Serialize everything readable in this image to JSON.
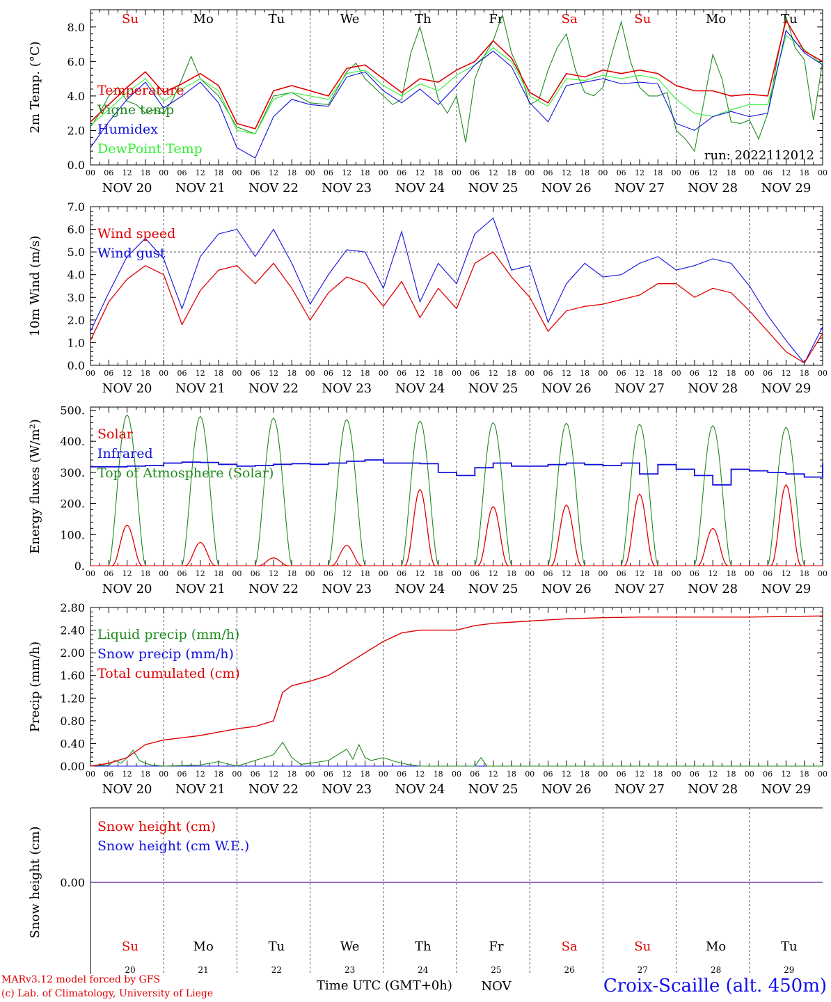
{
  "colors": {
    "red": "#e00000",
    "darkgreen": "#1f8a1f",
    "blue": "#1010dd",
    "lightgreen": "#33ee33",
    "purple": "#7a3fa8",
    "grid": "#555555"
  },
  "time_axis": {
    "hour_labels": [
      "00",
      "06",
      "12",
      "18"
    ],
    "date_labels": [
      "NOV 20",
      "NOV 21",
      "NOV 22",
      "NOV 23",
      "NOV 24",
      "NOV 25",
      "NOV 26",
      "NOV 27",
      "NOV 28",
      "NOV 29"
    ],
    "weekdays": [
      "Su",
      "Mo",
      "Tu",
      "We",
      "Th",
      "Fr",
      "Sa",
      "Su",
      "Mo",
      "Tu"
    ],
    "weekday_colors": [
      "#e00000",
      "#000000",
      "#000000",
      "#000000",
      "#000000",
      "#000000",
      "#e00000",
      "#e00000",
      "#000000",
      "#000000"
    ],
    "day_numbers": [
      "20",
      "21",
      "22",
      "23",
      "24",
      "25",
      "26",
      "27",
      "28",
      "29"
    ],
    "month_label": "NOV"
  },
  "footer": {
    "credit_line1": "MARv3.12 model forced by GFS",
    "credit_line2": "(c) Lab. of Climatology, University of Liege",
    "x_title": "Time UTC (GMT+0h)",
    "station": "Croix-Scaille (alt. 450m)"
  },
  "chart_data": [
    {
      "type": "line",
      "ylabel": "2m Temp. (°C)",
      "ylim": [
        0,
        9
      ],
      "yticks": [
        "0.0",
        "2.0",
        "4.0",
        "6.0",
        "8.0"
      ],
      "ytick_values": [
        0,
        2,
        4,
        6,
        8
      ],
      "annotation": "run: 2022112012",
      "x_unit": "hours since NOV 20 00 UTC",
      "series": [
        {
          "name": "Temperature",
          "color": "#e00000",
          "x": [
            0,
            6,
            12,
            18,
            24,
            30,
            36,
            42,
            48,
            54,
            60,
            66,
            72,
            78,
            84,
            90,
            96,
            102,
            108,
            114,
            120,
            126,
            132,
            138,
            144,
            150,
            156,
            162,
            168,
            174,
            180,
            186,
            192,
            198,
            204,
            210,
            216,
            222,
            228,
            234,
            240
          ],
          "y": [
            2.5,
            3.5,
            4.5,
            5.4,
            4.2,
            4.7,
            5.3,
            4.6,
            2.4,
            2.1,
            4.3,
            4.6,
            4.3,
            4.0,
            5.6,
            5.8,
            5.0,
            4.2,
            5.0,
            4.8,
            5.5,
            6.0,
            7.2,
            6.2,
            4.2,
            3.6,
            5.3,
            5.1,
            5.5,
            5.3,
            5.5,
            5.3,
            4.6,
            4.3,
            4.3,
            4.0,
            4.1,
            4.0,
            8.4,
            6.6,
            6.0
          ]
        },
        {
          "name": "Vigne temp",
          "color": "#1f8a1f",
          "x": [
            0,
            3,
            6,
            9,
            12,
            15,
            18,
            21,
            24,
            27,
            30,
            33,
            36,
            39,
            42,
            48,
            54,
            60,
            66,
            72,
            78,
            84,
            87,
            90,
            96,
            99,
            102,
            105,
            108,
            111,
            114,
            117,
            120,
            123,
            126,
            129,
            132,
            135,
            138,
            141,
            144,
            147,
            150,
            153,
            156,
            159,
            162,
            165,
            168,
            171,
            174,
            177,
            180,
            183,
            186,
            189,
            192,
            195,
            198,
            201,
            204,
            207,
            210,
            213,
            216,
            219,
            222,
            225,
            228,
            231,
            234,
            237,
            240
          ],
          "y": [
            2.2,
            3.0,
            4.0,
            4.5,
            3.7,
            3.5,
            3.0,
            3.2,
            3.0,
            3.8,
            5.0,
            6.3,
            5.0,
            4.5,
            4.0,
            2.2,
            1.8,
            4.0,
            4.2,
            3.6,
            3.5,
            5.4,
            5.9,
            5.0,
            4.0,
            3.5,
            3.8,
            6.5,
            8.0,
            6.0,
            3.8,
            3.0,
            4.0,
            1.3,
            5.0,
            6.3,
            7.2,
            8.7,
            6.5,
            5.3,
            3.5,
            3.8,
            5.5,
            6.8,
            7.6,
            5.5,
            4.2,
            4.0,
            4.5,
            6.5,
            8.3,
            6.0,
            4.5,
            4.0,
            4.0,
            4.2,
            2.0,
            1.5,
            0.8,
            3.6,
            6.4,
            5.0,
            2.5,
            2.4,
            2.6,
            1.5,
            3.0,
            6.0,
            8.6,
            6.8,
            6.1,
            2.6,
            6.0
          ]
        },
        {
          "name": "Humidex",
          "color": "#1010dd",
          "x": [
            0,
            6,
            12,
            18,
            24,
            30,
            36,
            42,
            48,
            54,
            60,
            66,
            72,
            78,
            84,
            90,
            96,
            102,
            108,
            114,
            120,
            126,
            132,
            138,
            144,
            150,
            156,
            162,
            168,
            174,
            180,
            186,
            192,
            198,
            204,
            210,
            216,
            222,
            228,
            234,
            240
          ],
          "y": [
            1.0,
            2.5,
            3.8,
            4.8,
            3.3,
            4.0,
            4.8,
            3.6,
            1.0,
            0.4,
            2.8,
            3.8,
            3.5,
            3.4,
            5.1,
            5.4,
            4.3,
            3.6,
            4.4,
            3.5,
            4.6,
            5.8,
            6.6,
            5.7,
            3.6,
            2.5,
            4.6,
            4.8,
            5.0,
            4.7,
            4.8,
            4.7,
            2.4,
            2.0,
            2.8,
            3.1,
            2.8,
            3.0,
            7.8,
            6.5,
            5.8
          ]
        },
        {
          "name": "DewPoint Temp",
          "color": "#33ee33",
          "x": [
            0,
            6,
            12,
            18,
            24,
            30,
            36,
            42,
            48,
            54,
            60,
            66,
            72,
            78,
            84,
            90,
            96,
            102,
            108,
            114,
            120,
            126,
            132,
            138,
            144,
            150,
            156,
            162,
            168,
            174,
            180,
            186,
            192,
            198,
            204,
            210,
            216,
            222,
            228,
            234,
            240
          ],
          "y": [
            2.3,
            3.2,
            4.2,
            5.0,
            3.7,
            4.4,
            5.0,
            4.3,
            2.0,
            1.8,
            3.8,
            4.2,
            4.0,
            3.8,
            5.3,
            5.5,
            4.6,
            4.0,
            4.7,
            4.3,
            5.2,
            5.8,
            6.8,
            6.0,
            4.0,
            3.4,
            5.0,
            4.9,
            5.2,
            5.0,
            5.2,
            5.0,
            3.8,
            3.0,
            2.8,
            3.2,
            3.5,
            3.5,
            7.5,
            6.7,
            5.8
          ]
        }
      ]
    },
    {
      "type": "line",
      "ylabel": "10m Wind (m/s)",
      "ylim": [
        0,
        7
      ],
      "yticks": [
        "0.0",
        "1.0",
        "2.0",
        "3.0",
        "4.0",
        "5.0",
        "6.0",
        "7.0"
      ],
      "ytick_values": [
        0,
        1,
        2,
        3,
        4,
        5,
        6,
        7
      ],
      "reference_line": 5.0,
      "x_unit": "hours since NOV 20 00 UTC",
      "series": [
        {
          "name": "Wind speed",
          "color": "#e00000",
          "x": [
            0,
            6,
            12,
            18,
            24,
            30,
            36,
            42,
            48,
            54,
            60,
            66,
            72,
            78,
            84,
            90,
            96,
            102,
            108,
            114,
            120,
            126,
            132,
            138,
            144,
            150,
            156,
            162,
            168,
            174,
            180,
            186,
            192,
            198,
            204,
            210,
            216,
            222,
            228,
            234,
            240
          ],
          "y": [
            1.1,
            2.8,
            3.8,
            4.4,
            4.0,
            1.8,
            3.3,
            4.2,
            4.4,
            3.6,
            4.5,
            3.4,
            2.0,
            3.2,
            3.9,
            3.6,
            2.6,
            3.7,
            2.1,
            3.4,
            2.5,
            4.5,
            5.0,
            3.9,
            3.0,
            1.5,
            2.4,
            2.6,
            2.7,
            2.9,
            3.1,
            3.6,
            3.6,
            3.0,
            3.4,
            3.2,
            2.4,
            1.5,
            0.6,
            0.1,
            1.4
          ]
        },
        {
          "name": "Wind gust",
          "color": "#1010dd",
          "x": [
            0,
            6,
            12,
            18,
            24,
            30,
            36,
            42,
            48,
            54,
            60,
            66,
            72,
            78,
            84,
            90,
            96,
            102,
            108,
            114,
            120,
            126,
            132,
            138,
            144,
            150,
            156,
            162,
            168,
            174,
            180,
            186,
            192,
            198,
            204,
            210,
            216,
            222,
            228,
            234,
            240
          ],
          "y": [
            1.5,
            3.2,
            4.8,
            5.6,
            4.7,
            2.5,
            4.8,
            5.8,
            6.0,
            4.8,
            6.0,
            4.5,
            2.7,
            4.0,
            5.1,
            5.0,
            3.4,
            5.9,
            2.8,
            4.5,
            3.6,
            5.8,
            6.5,
            4.2,
            4.4,
            1.9,
            3.6,
            4.5,
            3.9,
            4.0,
            4.5,
            4.8,
            4.2,
            4.4,
            4.7,
            4.5,
            3.5,
            2.2,
            1.1,
            0.1,
            1.7
          ]
        }
      ]
    },
    {
      "type": "line",
      "ylabel": "Energy fluxes (W/m²)",
      "ylim": [
        0,
        500
      ],
      "yticks": [
        "0.",
        "100.",
        "200.",
        "300.",
        "400.",
        "500."
      ],
      "ytick_values": [
        0,
        100,
        200,
        300,
        400,
        500
      ],
      "x_unit": "hours since NOV 20 00 UTC",
      "daily_peaks": {
        "solar_peak": [
          130,
          75,
          25,
          65,
          245,
          190,
          195,
          230,
          120,
          260
        ],
        "toa_peak": [
          485,
          480,
          475,
          470,
          465,
          460,
          458,
          455,
          450,
          445
        ]
      },
      "series": [
        {
          "name": "Solar",
          "color": "#e00000"
        },
        {
          "name": "Infrared",
          "color": "#1010dd",
          "x": [
            0,
            6,
            12,
            18,
            24,
            30,
            36,
            42,
            48,
            54,
            60,
            66,
            72,
            78,
            84,
            90,
            96,
            102,
            108,
            114,
            120,
            126,
            132,
            138,
            144,
            150,
            156,
            162,
            168,
            174,
            180,
            186,
            192,
            198,
            204,
            210,
            216,
            222,
            228,
            234,
            240
          ],
          "y": [
            318,
            318,
            320,
            322,
            330,
            333,
            332,
            326,
            320,
            322,
            326,
            328,
            326,
            330,
            336,
            340,
            330,
            330,
            328,
            300,
            290,
            315,
            330,
            320,
            320,
            325,
            330,
            325,
            322,
            330,
            295,
            325,
            310,
            290,
            260,
            310,
            305,
            300,
            295,
            285,
            330
          ]
        },
        {
          "name": "Top of Atmosphere (Solar)",
          "color": "#1f8a1f"
        }
      ]
    },
    {
      "type": "line",
      "ylabel": "Precip (mm/h)",
      "ylim": [
        0,
        2.8
      ],
      "yticks": [
        "0.00",
        "0.40",
        "0.80",
        "1.20",
        "1.60",
        "2.00",
        "2.40",
        "2.80"
      ],
      "ytick_values": [
        0,
        0.4,
        0.8,
        1.2,
        1.6,
        2.0,
        2.4,
        2.8
      ],
      "x_unit": "hours since NOV 20 00 UTC",
      "series": [
        {
          "name": "Liquid precip (mm/h)",
          "color": "#1f8a1f",
          "x": [
            0,
            6,
            8,
            10,
            12,
            14,
            16,
            18,
            20,
            24,
            36,
            42,
            48,
            60,
            63,
            66,
            69,
            72,
            78,
            84,
            86,
            88,
            90,
            92,
            96,
            100,
            104,
            108,
            114,
            120,
            126,
            128,
            130,
            240
          ],
          "y": [
            0,
            0.02,
            0.1,
            0.05,
            0.15,
            0.28,
            0.1,
            0.05,
            0.02,
            0.0,
            0.02,
            0.08,
            0.0,
            0.2,
            0.42,
            0.15,
            0.03,
            0.05,
            0.1,
            0.3,
            0.12,
            0.38,
            0.15,
            0.1,
            0.15,
            0.08,
            0.03,
            0.0,
            0.0,
            0.0,
            0.0,
            0.15,
            0.0,
            0.0
          ]
        },
        {
          "name": "Snow precip (mm/h)",
          "color": "#1010dd",
          "x": [
            0,
            240
          ],
          "y": [
            0,
            0
          ]
        },
        {
          "name": "Total cumulated (cm)",
          "color": "#e00000",
          "x": [
            0,
            6,
            12,
            18,
            24,
            30,
            36,
            42,
            48,
            54,
            60,
            63,
            66,
            72,
            78,
            84,
            90,
            96,
            102,
            108,
            114,
            120,
            126,
            132,
            144,
            156,
            168,
            180,
            192,
            204,
            216,
            228,
            240
          ],
          "y": [
            0,
            0.05,
            0.15,
            0.38,
            0.46,
            0.5,
            0.54,
            0.6,
            0.66,
            0.7,
            0.8,
            1.3,
            1.42,
            1.5,
            1.6,
            1.8,
            2.0,
            2.2,
            2.35,
            2.4,
            2.4,
            2.4,
            2.48,
            2.52,
            2.56,
            2.6,
            2.62,
            2.63,
            2.63,
            2.63,
            2.63,
            2.64,
            2.65
          ]
        }
      ]
    },
    {
      "type": "line",
      "ylabel": "Snow height (cm)",
      "ytick_labels": [
        "0.00"
      ],
      "x_unit": "hours since NOV 20 00 UTC",
      "series": [
        {
          "name": "Snow height (cm)",
          "color": "#e00000",
          "x": [
            0,
            240
          ],
          "y": [
            0,
            0
          ]
        },
        {
          "name": "Snow height (cm W.E.)",
          "color": "#1010dd",
          "x": [
            0,
            240
          ],
          "y": [
            0,
            0
          ]
        }
      ]
    }
  ]
}
